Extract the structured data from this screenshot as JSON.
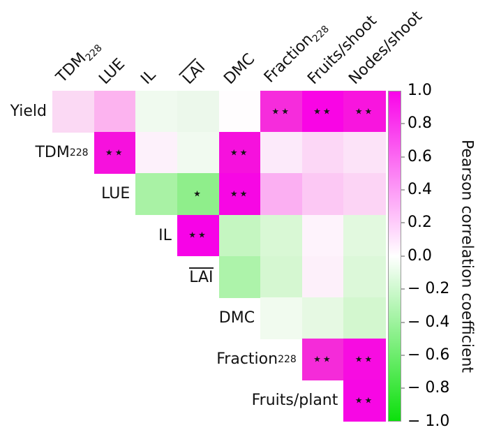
{
  "chart_data": {
    "type": "heatmap",
    "subtype": "upper-triangular-correlation-matrix",
    "colorbar_label": "Pearson correlation coefficient",
    "colorbar_position": "right",
    "value_range": [
      -1.0,
      1.0
    ],
    "colormap": {
      "positive_end": "#f904e9",
      "zero": "#ffffff",
      "negative_end": "#0ce00c"
    },
    "significance_note": "stars drawn inside significant cells",
    "row_labels": [
      {
        "text": "Yield"
      },
      {
        "text": "TDM",
        "sub": "228"
      },
      {
        "text": "LUE"
      },
      {
        "text": "IL"
      },
      {
        "text": "LAI",
        "overline": true
      },
      {
        "text": "DMC"
      },
      {
        "text": "Fraction",
        "sub": "228"
      },
      {
        "text": "Fruits/plant"
      }
    ],
    "col_labels": [
      {
        "text": "TDM",
        "sub": "228"
      },
      {
        "text": "LUE"
      },
      {
        "text": "IL"
      },
      {
        "text": "LAI",
        "overline": true
      },
      {
        "text": "DMC"
      },
      {
        "text": "Fraction",
        "sub": "228"
      },
      {
        "text": "Fruits/shoot"
      },
      {
        "text": "Nodes/shoot"
      }
    ],
    "colorbar_ticks": [
      {
        "value": 1.0,
        "label": "1.0"
      },
      {
        "value": 0.8,
        "label": "0.8"
      },
      {
        "value": 0.6,
        "label": "0.6"
      },
      {
        "value": 0.4,
        "label": "0.4"
      },
      {
        "value": 0.2,
        "label": "0.2"
      },
      {
        "value": 0.0,
        "label": "0.0"
      },
      {
        "value": -0.2,
        "label": "− 0.2"
      },
      {
        "value": -0.4,
        "label": "− 0.4"
      },
      {
        "value": -0.6,
        "label": "− 0.6"
      },
      {
        "value": -0.8,
        "label": "− 0.8"
      },
      {
        "value": -1.0,
        "label": "− 1.0"
      }
    ],
    "cells": [
      {
        "r": 0,
        "c": 0,
        "v": 0.17,
        "sig": "",
        "color": "#fbd9f4"
      },
      {
        "r": 0,
        "c": 1,
        "v": 0.3,
        "sig": "",
        "color": "#fcb3ef"
      },
      {
        "r": 0,
        "c": 2,
        "v": -0.06,
        "sig": "",
        "color": "#f0faef"
      },
      {
        "r": 0,
        "c": 3,
        "v": -0.08,
        "sig": "",
        "color": "#ecf8eb"
      },
      {
        "r": 0,
        "c": 4,
        "v": 0.01,
        "sig": "",
        "color": "#fffdfe"
      },
      {
        "r": 0,
        "c": 5,
        "v": 0.83,
        "sig": "★★",
        "color": "#f62cdc"
      },
      {
        "r": 0,
        "c": 6,
        "v": 0.95,
        "sig": "★★",
        "color": "#f905e5"
      },
      {
        "r": 0,
        "c": 7,
        "v": 0.91,
        "sig": "★★",
        "color": "#f815de"
      },
      {
        "r": 1,
        "c": 1,
        "v": 0.92,
        "sig": "★★",
        "color": "#f611dd"
      },
      {
        "r": 1,
        "c": 2,
        "v": 0.05,
        "sig": "",
        "color": "#fdf1fb"
      },
      {
        "r": 1,
        "c": 3,
        "v": -0.05,
        "sig": "",
        "color": "#f1faf0"
      },
      {
        "r": 1,
        "c": 4,
        "v": 0.92,
        "sig": "★★",
        "color": "#f611dd"
      },
      {
        "r": 1,
        "c": 5,
        "v": 0.08,
        "sig": "",
        "color": "#fceafa"
      },
      {
        "r": 1,
        "c": 6,
        "v": 0.15,
        "sig": "",
        "color": "#fcd7f6"
      },
      {
        "r": 1,
        "c": 7,
        "v": 0.11,
        "sig": "",
        "color": "#fce3f8"
      },
      {
        "r": 2,
        "c": 2,
        "v": -0.33,
        "sig": "",
        "color": "#a9f2a5"
      },
      {
        "r": 2,
        "c": 3,
        "v": -0.45,
        "sig": "★",
        "color": "#8fee8b"
      },
      {
        "r": 2,
        "c": 4,
        "v": 0.96,
        "sig": "★★",
        "color": "#f707e4"
      },
      {
        "r": 2,
        "c": 5,
        "v": 0.3,
        "sig": "",
        "color": "#fbaff2"
      },
      {
        "r": 2,
        "c": 6,
        "v": 0.2,
        "sig": "",
        "color": "#fcc8f4"
      },
      {
        "r": 2,
        "c": 7,
        "v": 0.16,
        "sig": "",
        "color": "#fcd4f5"
      },
      {
        "r": 3,
        "c": 3,
        "v": 0.97,
        "sig": "★★",
        "color": "#f703e7"
      },
      {
        "r": 3,
        "c": 4,
        "v": -0.23,
        "sig": "",
        "color": "#c5f6c1"
      },
      {
        "r": 3,
        "c": 5,
        "v": -0.13,
        "sig": "",
        "color": "#d9f8d5"
      },
      {
        "r": 3,
        "c": 6,
        "v": 0.04,
        "sig": "",
        "color": "#fef3fc"
      },
      {
        "r": 3,
        "c": 7,
        "v": -0.1,
        "sig": "",
        "color": "#e2f9df"
      },
      {
        "r": 4,
        "c": 4,
        "v": -0.31,
        "sig": "",
        "color": "#adf3aa"
      },
      {
        "r": 4,
        "c": 5,
        "v": -0.14,
        "sig": "",
        "color": "#d5f7d1"
      },
      {
        "r": 4,
        "c": 6,
        "v": 0.05,
        "sig": "",
        "color": "#fdf0fa"
      },
      {
        "r": 4,
        "c": 7,
        "v": -0.12,
        "sig": "",
        "color": "#dcf8d9"
      },
      {
        "r": 5,
        "c": 5,
        "v": -0.04,
        "sig": "",
        "color": "#f1fbef"
      },
      {
        "r": 5,
        "c": 6,
        "v": -0.09,
        "sig": "",
        "color": "#e6f9e3"
      },
      {
        "r": 5,
        "c": 7,
        "v": -0.15,
        "sig": "",
        "color": "#d3f7cf"
      },
      {
        "r": 6,
        "c": 6,
        "v": 0.84,
        "sig": "★★",
        "color": "#f52bd9"
      },
      {
        "r": 6,
        "c": 7,
        "v": 0.93,
        "sig": "★★",
        "color": "#f70ce1"
      },
      {
        "r": 7,
        "c": 7,
        "v": 0.96,
        "sig": "★★",
        "color": "#f707e4"
      }
    ]
  }
}
